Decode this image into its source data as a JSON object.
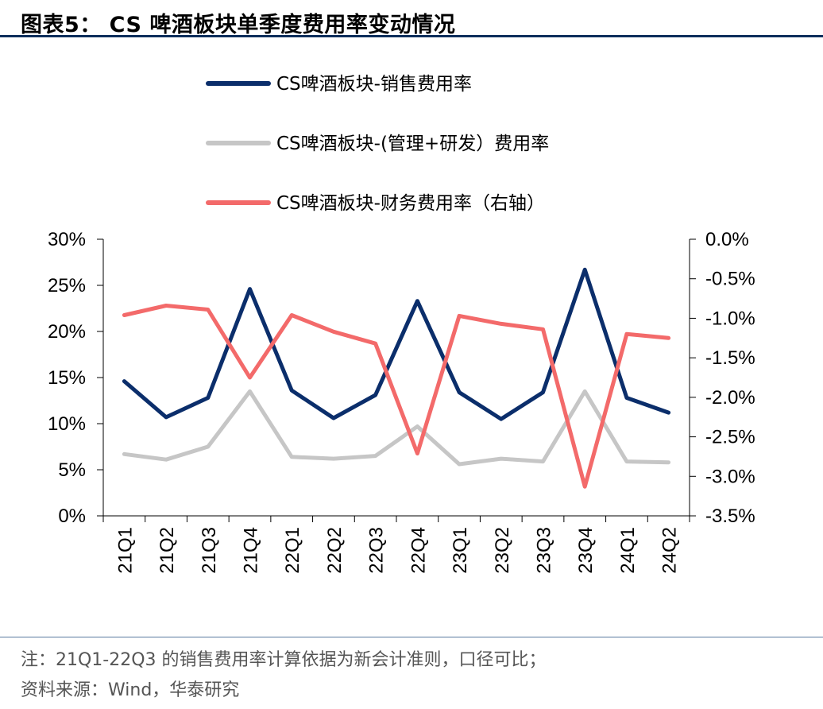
{
  "header": {
    "title": "图表5： CS 啤酒板块单季度费用率变动情况"
  },
  "footer": {
    "note": "注：21Q1-22Q3 的销售费用率计算依据为新会计准则，口径可比；",
    "source": "资料来源：Wind，华泰研究"
  },
  "chart_data": {
    "type": "line",
    "title": "",
    "xlabel": "",
    "ylabel": "",
    "categories": [
      "21Q1",
      "21Q2",
      "21Q3",
      "21Q4",
      "22Q1",
      "22Q2",
      "22Q3",
      "22Q4",
      "23Q1",
      "23Q2",
      "23Q3",
      "23Q4",
      "24Q1",
      "24Q2"
    ],
    "left_axis": {
      "ylim": [
        0,
        30
      ],
      "ticks": [
        0,
        5,
        10,
        15,
        20,
        25,
        30
      ],
      "tick_labels": [
        "0%",
        "5%",
        "10%",
        "15%",
        "20%",
        "25%",
        "30%"
      ]
    },
    "right_axis": {
      "ylim": [
        -3.5,
        0
      ],
      "ticks": [
        -3.5,
        -3.0,
        -2.5,
        -2.0,
        -1.5,
        -1.0,
        -0.5,
        0.0
      ],
      "tick_labels": [
        "-3.5%",
        "-3.0%",
        "-2.5%",
        "-2.0%",
        "-1.5%",
        "-1.0%",
        "-0.5%",
        "0.0%"
      ]
    },
    "grid": false,
    "legend_position": "top",
    "series": [
      {
        "name": "CS啤酒板块-销售费用率",
        "axis": "left",
        "color": "#0b2e6b",
        "values": [
          14.6,
          10.7,
          12.8,
          24.6,
          13.6,
          10.6,
          13.1,
          23.3,
          13.4,
          10.5,
          13.4,
          26.7,
          12.8,
          11.2
        ]
      },
      {
        "name": "CS啤酒板块-(管理+研发）费用率",
        "axis": "left",
        "color": "#c6c6c6",
        "values": [
          6.7,
          6.1,
          7.5,
          13.5,
          6.4,
          6.2,
          6.5,
          9.7,
          5.6,
          6.2,
          5.9,
          13.5,
          5.9,
          5.8
        ]
      },
      {
        "name": "CS啤酒板块-财务费用率（右轴）",
        "axis": "right",
        "color": "#f36a6a",
        "values": [
          -0.96,
          -0.84,
          -0.89,
          -1.75,
          -0.96,
          -1.17,
          -1.32,
          -2.71,
          -0.97,
          -1.07,
          -1.14,
          -3.13,
          -1.2,
          -1.25
        ]
      }
    ]
  }
}
